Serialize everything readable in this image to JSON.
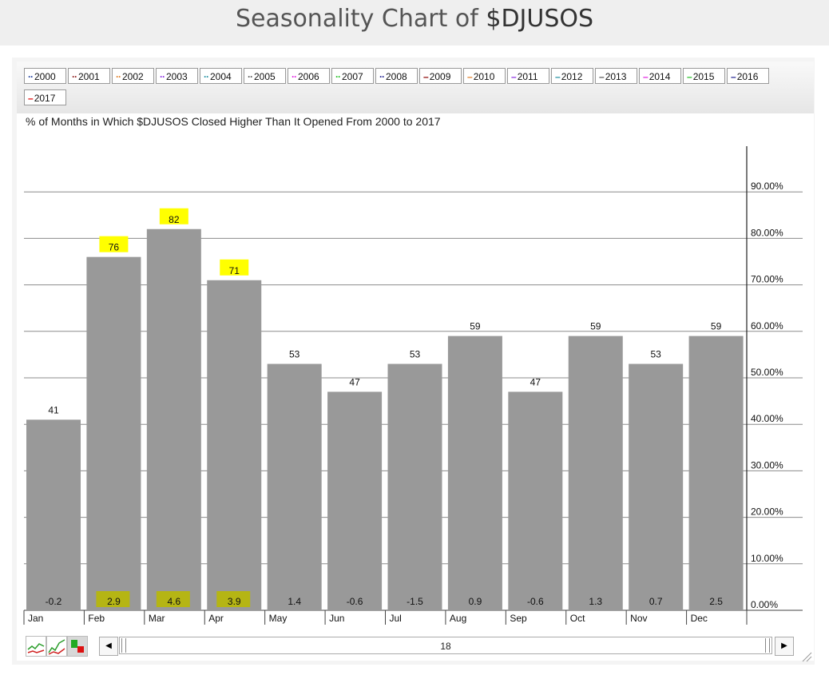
{
  "page": {
    "title_prefix": "Seasonality Chart of ",
    "title_symbol": "$DJUSOS"
  },
  "legend": [
    {
      "label": "2000",
      "color": "#1f3f9f",
      "style": "dot"
    },
    {
      "label": "2001",
      "color": "#8b1a1a",
      "style": "dot"
    },
    {
      "label": "2002",
      "color": "#e07b20",
      "style": "dot"
    },
    {
      "label": "2003",
      "color": "#8a2be2",
      "style": "dot"
    },
    {
      "label": "2004",
      "color": "#1f8fa0",
      "style": "dot"
    },
    {
      "label": "2005",
      "color": "#555555",
      "style": "dot"
    },
    {
      "label": "2006",
      "color": "#e020e0",
      "style": "dot"
    },
    {
      "label": "2007",
      "color": "#20c020",
      "style": "dot"
    },
    {
      "label": "2008",
      "color": "#1f1f8f",
      "style": "dot"
    },
    {
      "label": "2009",
      "color": "#8b0000",
      "style": "dash"
    },
    {
      "label": "2010",
      "color": "#e07b20",
      "style": "dash"
    },
    {
      "label": "2011",
      "color": "#8a2be2",
      "style": "dash"
    },
    {
      "label": "2012",
      "color": "#1f8fa0",
      "style": "dash"
    },
    {
      "label": "2013",
      "color": "#555555",
      "style": "dash"
    },
    {
      "label": "2014",
      "color": "#e020e0",
      "style": "dash"
    },
    {
      "label": "2015",
      "color": "#20c020",
      "style": "dash"
    },
    {
      "label": "2016",
      "color": "#1f1f8f",
      "style": "dash"
    },
    {
      "label": "2017",
      "color": "#e00000",
      "style": "dash"
    }
  ],
  "scrollbar": {
    "label": "18"
  },
  "chart_data": {
    "type": "bar",
    "title": "% of Months in Which $DJUSOS Closed Higher Than It Opened From 2000 to 2017",
    "categories": [
      "Jan",
      "Feb",
      "Mar",
      "Apr",
      "May",
      "Jun",
      "Jul",
      "Aug",
      "Sep",
      "Oct",
      "Nov",
      "Dec"
    ],
    "values": [
      41,
      76,
      82,
      71,
      53,
      47,
      53,
      59,
      47,
      59,
      53,
      59
    ],
    "avg_change_labels": [
      "-0.2",
      "2.9",
      "4.6",
      "3.9",
      "1.4",
      "-0.6",
      "-1.5",
      "0.9",
      "-0.6",
      "1.3",
      "0.7",
      "2.5"
    ],
    "highlighted": [
      "Feb",
      "Mar",
      "Apr"
    ],
    "highlight_color": "#ffff00",
    "bar_color": "#999999",
    "ylim": [
      0,
      100
    ],
    "yticks": [
      0,
      10,
      20,
      30,
      40,
      50,
      60,
      70,
      80,
      90
    ],
    "ytick_labels": [
      "0.00%",
      "10.00%",
      "20.00%",
      "30.00%",
      "40.00%",
      "50.00%",
      "60.00%",
      "70.00%",
      "80.00%",
      "90.00%"
    ],
    "y_axis_side": "right",
    "grid": true
  }
}
